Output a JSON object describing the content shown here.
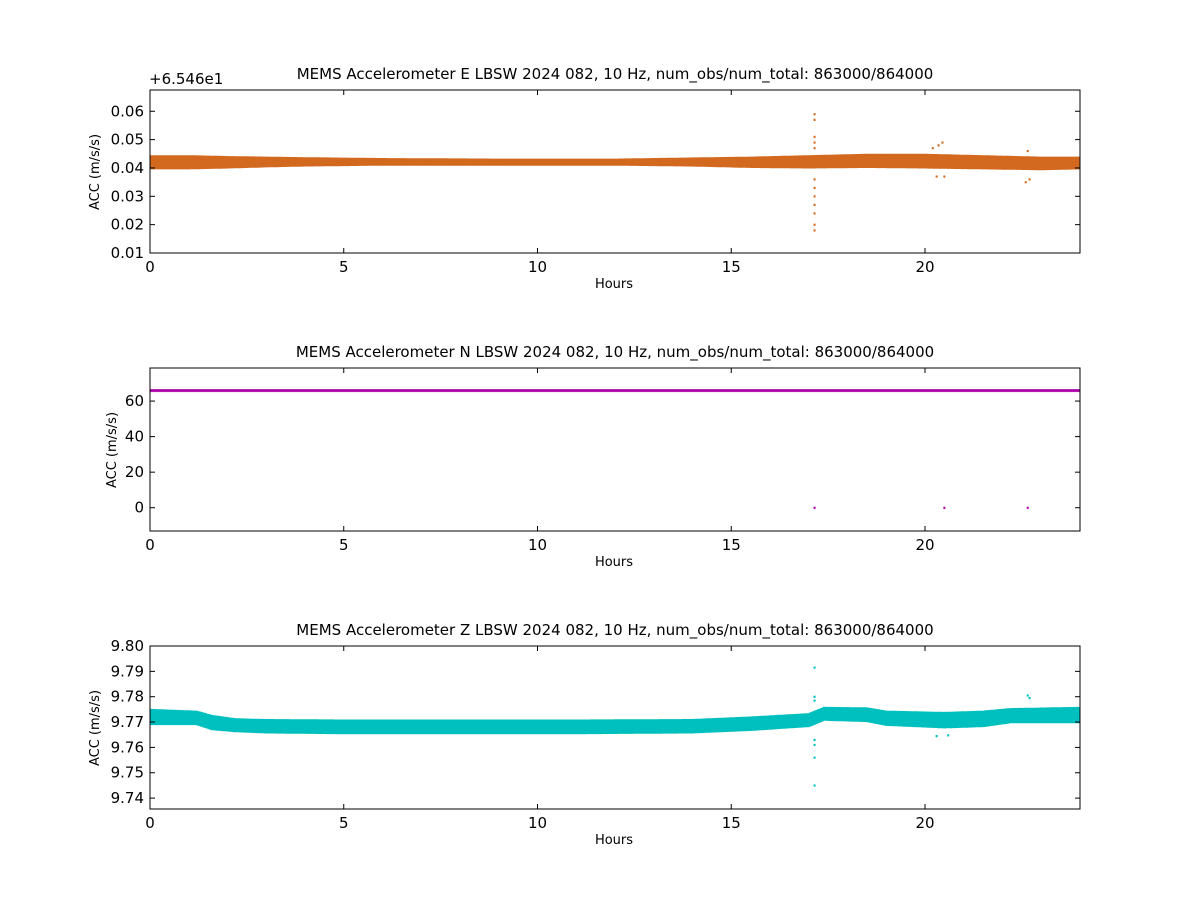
{
  "chart_data": [
    {
      "type": "scatter",
      "title": "MEMS Accelerometer E LBSW 2024 082, 10 Hz, num_obs/num_total: 863000/864000",
      "xlabel": "Hours",
      "ylabel": "ACC (m/s/s)",
      "offset_text": "+6.546e1",
      "color": "#d2691e",
      "xlim": [
        0,
        24
      ],
      "ylim": [
        0.01,
        0.0675
      ],
      "xticks": [
        0,
        5,
        10,
        15,
        20
      ],
      "yticks": [
        0.01,
        0.02,
        0.03,
        0.04,
        0.05,
        0.06
      ],
      "ytick_labels": [
        "0.01",
        "0.02",
        "0.03",
        "0.04",
        "0.05",
        "0.06"
      ],
      "band": [
        {
          "x": 0.0,
          "lo": 0.0395,
          "hi": 0.0445
        },
        {
          "x": 1.0,
          "lo": 0.0395,
          "hi": 0.0445
        },
        {
          "x": 2.0,
          "lo": 0.0398,
          "hi": 0.0442
        },
        {
          "x": 3.0,
          "lo": 0.0402,
          "hi": 0.044
        },
        {
          "x": 4.0,
          "lo": 0.0405,
          "hi": 0.0438
        },
        {
          "x": 6.0,
          "lo": 0.0408,
          "hi": 0.0435
        },
        {
          "x": 9.0,
          "lo": 0.0408,
          "hi": 0.0433
        },
        {
          "x": 12.0,
          "lo": 0.0408,
          "hi": 0.0433
        },
        {
          "x": 14.0,
          "lo": 0.0405,
          "hi": 0.0437
        },
        {
          "x": 15.5,
          "lo": 0.04,
          "hi": 0.044
        },
        {
          "x": 17.0,
          "lo": 0.0398,
          "hi": 0.0445
        },
        {
          "x": 18.5,
          "lo": 0.04,
          "hi": 0.045
        },
        {
          "x": 20.0,
          "lo": 0.0398,
          "hi": 0.045
        },
        {
          "x": 21.5,
          "lo": 0.0395,
          "hi": 0.0445
        },
        {
          "x": 23.0,
          "lo": 0.0392,
          "hi": 0.044
        },
        {
          "x": 24.0,
          "lo": 0.0395,
          "hi": 0.044
        }
      ],
      "outliers": [
        [
          17.15,
          0.059
        ],
        [
          17.15,
          0.057
        ],
        [
          17.15,
          0.051
        ],
        [
          17.15,
          0.049
        ],
        [
          17.15,
          0.047
        ],
        [
          17.15,
          0.036
        ],
        [
          17.15,
          0.033
        ],
        [
          17.15,
          0.03
        ],
        [
          17.15,
          0.027
        ],
        [
          17.15,
          0.024
        ],
        [
          17.15,
          0.02
        ],
        [
          17.15,
          0.018
        ],
        [
          20.35,
          0.048
        ],
        [
          20.45,
          0.049
        ],
        [
          20.2,
          0.047
        ],
        [
          20.3,
          0.037
        ],
        [
          20.5,
          0.037
        ],
        [
          22.6,
          0.035
        ],
        [
          22.7,
          0.036
        ],
        [
          22.65,
          0.046
        ]
      ]
    },
    {
      "type": "scatter",
      "title": "MEMS Accelerometer N LBSW 2024 082, 10 Hz, num_obs/num_total: 863000/864000",
      "xlabel": "Hours",
      "ylabel": "ACC (m/s/s)",
      "color": "#aa00aa",
      "xlim": [
        0,
        24
      ],
      "ylim": [
        -13.1,
        78.6
      ],
      "xticks": [
        0,
        5,
        10,
        15,
        20
      ],
      "yticks": [
        0,
        20,
        40,
        60
      ],
      "ytick_labels": [
        "0",
        "20",
        "40",
        "60"
      ],
      "band": [
        {
          "x": 0.0,
          "lo": 65.2,
          "hi": 66.6
        },
        {
          "x": 24.0,
          "lo": 65.2,
          "hi": 66.6
        }
      ],
      "outliers": [
        [
          17.15,
          0
        ],
        [
          20.5,
          0
        ],
        [
          22.65,
          0
        ]
      ]
    },
    {
      "type": "scatter",
      "title": "MEMS Accelerometer Z LBSW 2024 082, 10 Hz, num_obs/num_total: 863000/864000",
      "xlabel": "Hours",
      "ylabel": "ACC (m/s/s)",
      "color": "#00bfbf",
      "xlim": [
        0,
        24
      ],
      "ylim": [
        9.7357,
        9.8
      ],
      "xticks": [
        0,
        5,
        10,
        15,
        20
      ],
      "yticks": [
        9.74,
        9.75,
        9.76,
        9.77,
        9.78,
        9.79,
        9.8
      ],
      "ytick_labels": [
        "9.74",
        "9.75",
        "9.76",
        "9.77",
        "9.78",
        "9.79",
        "9.80"
      ],
      "band": [
        {
          "x": 0.0,
          "lo": 9.7688,
          "hi": 9.7752
        },
        {
          "x": 1.2,
          "lo": 9.7688,
          "hi": 9.7745
        },
        {
          "x": 1.6,
          "lo": 9.7668,
          "hi": 9.7728
        },
        {
          "x": 2.2,
          "lo": 9.766,
          "hi": 9.7715
        },
        {
          "x": 3.0,
          "lo": 9.7655,
          "hi": 9.7712
        },
        {
          "x": 5.0,
          "lo": 9.7652,
          "hi": 9.771
        },
        {
          "x": 8.0,
          "lo": 9.7652,
          "hi": 9.771
        },
        {
          "x": 11.0,
          "lo": 9.7652,
          "hi": 9.771
        },
        {
          "x": 14.0,
          "lo": 9.7655,
          "hi": 9.7712
        },
        {
          "x": 15.5,
          "lo": 9.7665,
          "hi": 9.7722
        },
        {
          "x": 17.0,
          "lo": 9.768,
          "hi": 9.7735
        },
        {
          "x": 17.4,
          "lo": 9.7705,
          "hi": 9.776
        },
        {
          "x": 18.5,
          "lo": 9.77,
          "hi": 9.7758
        },
        {
          "x": 19.0,
          "lo": 9.7685,
          "hi": 9.7745
        },
        {
          "x": 20.5,
          "lo": 9.7675,
          "hi": 9.774
        },
        {
          "x": 21.5,
          "lo": 9.768,
          "hi": 9.7745
        },
        {
          "x": 22.2,
          "lo": 9.7695,
          "hi": 9.7755
        },
        {
          "x": 24.0,
          "lo": 9.7695,
          "hi": 9.776
        }
      ],
      "outliers": [
        [
          17.15,
          9.7915
        ],
        [
          17.15,
          9.78
        ],
        [
          17.15,
          9.7785
        ],
        [
          17.15,
          9.763
        ],
        [
          17.15,
          9.761
        ],
        [
          17.15,
          9.756
        ],
        [
          17.15,
          9.745
        ],
        [
          20.3,
          9.7645
        ],
        [
          20.6,
          9.7648
        ],
        [
          22.65,
          9.7805
        ],
        [
          22.7,
          9.7795
        ]
      ]
    }
  ]
}
